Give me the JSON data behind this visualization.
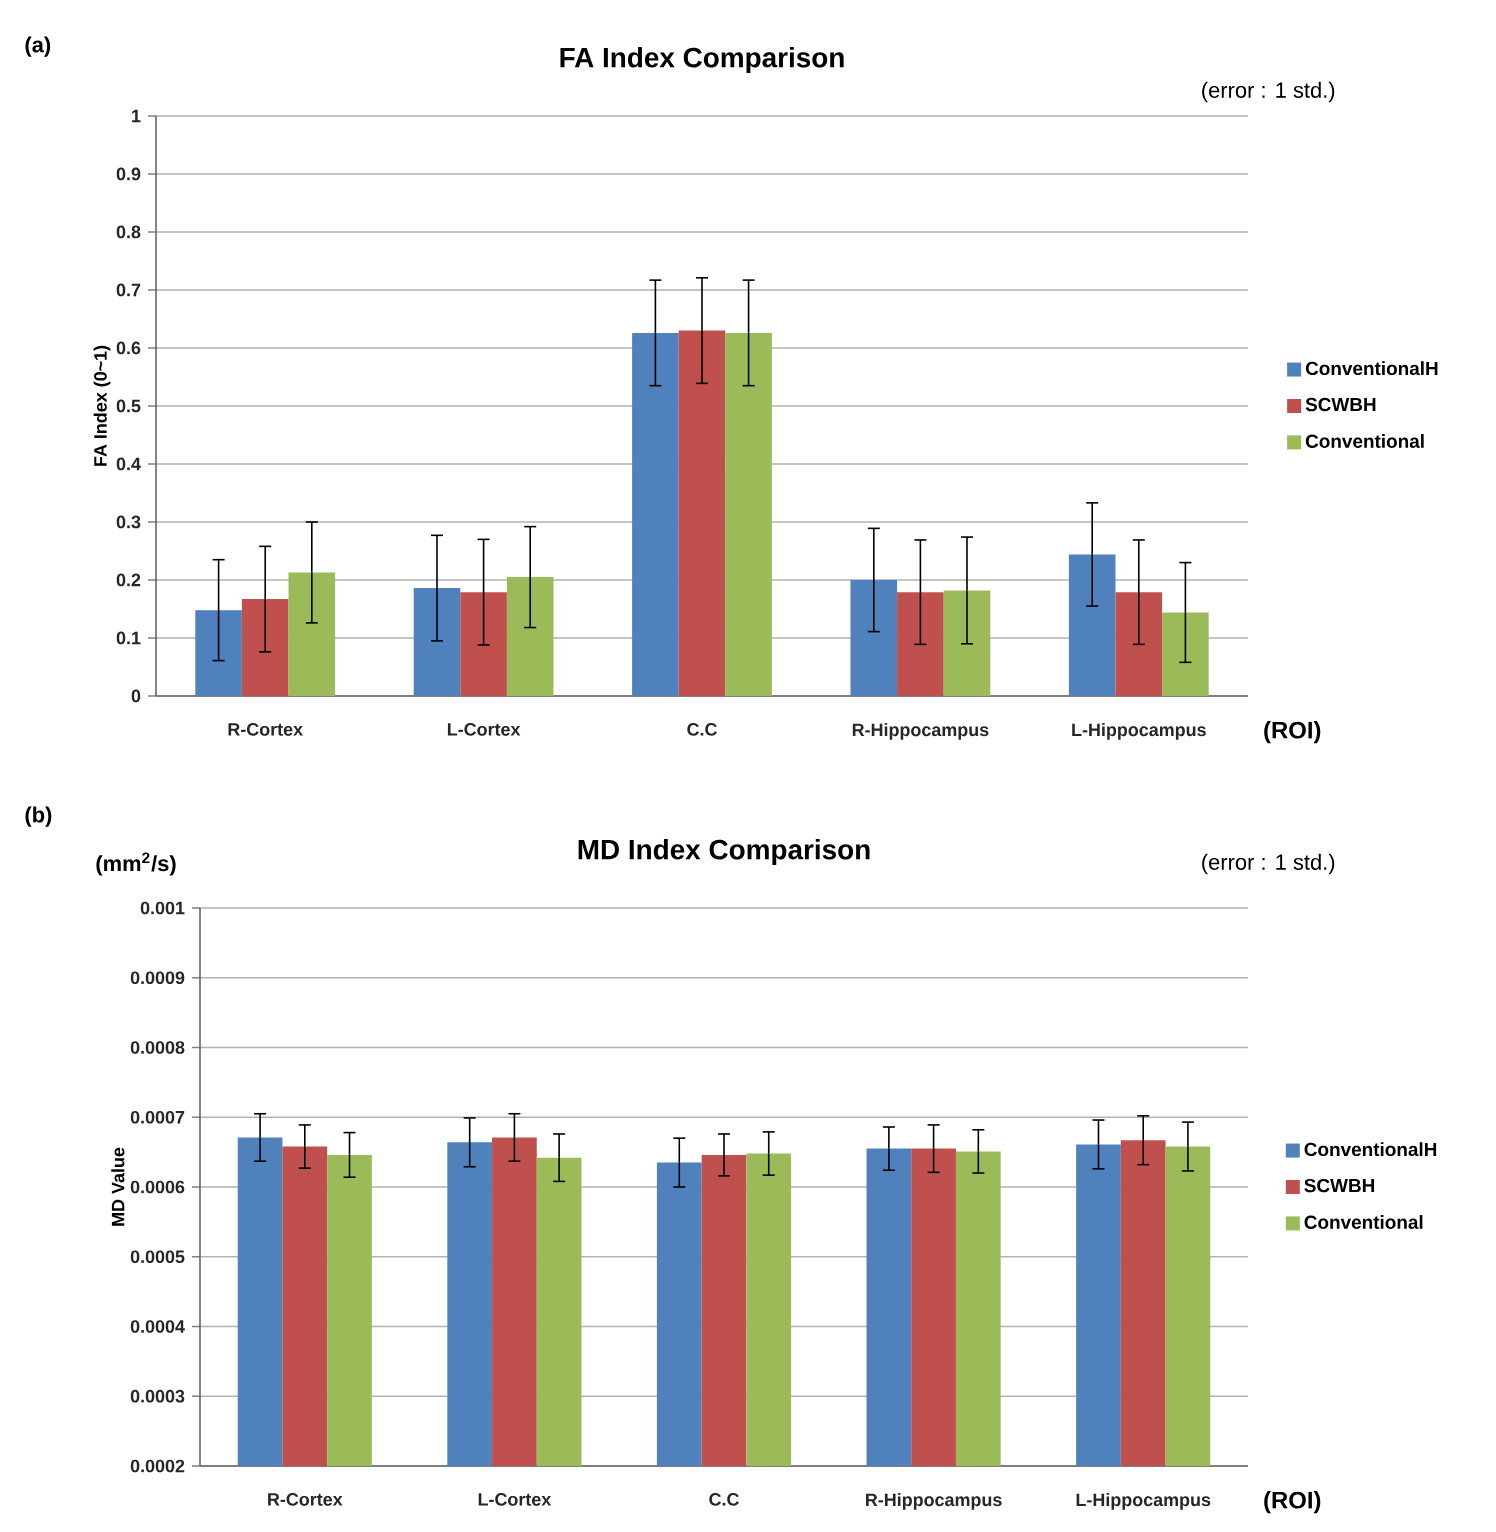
{
  "chart_data": [
    {
      "type": "bar",
      "title": "FA Index Comparison",
      "xlabel": "(ROI)",
      "ylabel": "FA Index (0~1)",
      "annotations": [
        "(a)",
        "(error : 1 std.)"
      ],
      "categories": [
        "R-Cortex",
        "L-Cortex",
        "C.C",
        "R-Hippocampus",
        "L-Hippocampus"
      ],
      "series": [
        {
          "name": "ConventionalH",
          "color": "#4f81bd",
          "values": [
            0.148,
            0.186,
            0.626,
            0.2,
            0.244
          ],
          "errors": [
            0.087,
            0.091,
            0.091,
            0.089,
            0.089
          ]
        },
        {
          "name": "SCWBH",
          "color": "#c0504d",
          "values": [
            0.167,
            0.179,
            0.63,
            0.179,
            0.179
          ],
          "errors": [
            0.091,
            0.091,
            0.091,
            0.09,
            0.09
          ]
        },
        {
          "name": "Conventional",
          "color": "#9bbb59",
          "values": [
            0.213,
            0.205,
            0.626,
            0.182,
            0.144
          ],
          "errors": [
            0.087,
            0.087,
            0.091,
            0.092,
            0.086
          ]
        }
      ],
      "ylim": [
        0,
        1
      ],
      "yticks": [
        0,
        0.1,
        0.2,
        0.3,
        0.4,
        0.5,
        0.6,
        0.7,
        0.8,
        0.9,
        1
      ],
      "grid": "y",
      "legend": "right"
    },
    {
      "type": "bar",
      "title": "MD Index Comparison",
      "xlabel": "(ROI)",
      "ylabel": "MD Value",
      "annotations": [
        "(b)",
        "(mm$^{2}$/s)",
        "(error : 1 std.)"
      ],
      "categories": [
        "R-Cortex",
        "L-Cortex",
        "C.C",
        "R-Hippocampus",
        "L-Hippocampus"
      ],
      "series": [
        {
          "name": "ConventionalH",
          "color": "#4f81bd",
          "values": [
            0.000671,
            0.000664,
            0.000635,
            0.000655,
            0.000661
          ],
          "errors": [
            3.4e-05,
            3.5e-05,
            3.5e-05,
            3.1e-05,
            3.5e-05
          ]
        },
        {
          "name": "SCWBH",
          "color": "#c0504d",
          "values": [
            0.000658,
            0.000671,
            0.000646,
            0.000655,
            0.000667
          ],
          "errors": [
            3.1e-05,
            3.4e-05,
            3e-05,
            3.4e-05,
            3.5e-05
          ]
        },
        {
          "name": "Conventional",
          "color": "#9bbb59",
          "values": [
            0.000646,
            0.000642,
            0.000648,
            0.000651,
            0.000658
          ],
          "errors": [
            3.2e-05,
            3.4e-05,
            3.1e-05,
            3.1e-05,
            3.5e-05
          ]
        }
      ],
      "ylim": [
        0.0002,
        0.001
      ],
      "yticks": [
        0.0002,
        0.0003,
        0.0004,
        0.0005,
        0.0006,
        0.0007,
        0.0008,
        0.0009,
        0.001
      ],
      "grid": "y",
      "legend": "right"
    }
  ]
}
